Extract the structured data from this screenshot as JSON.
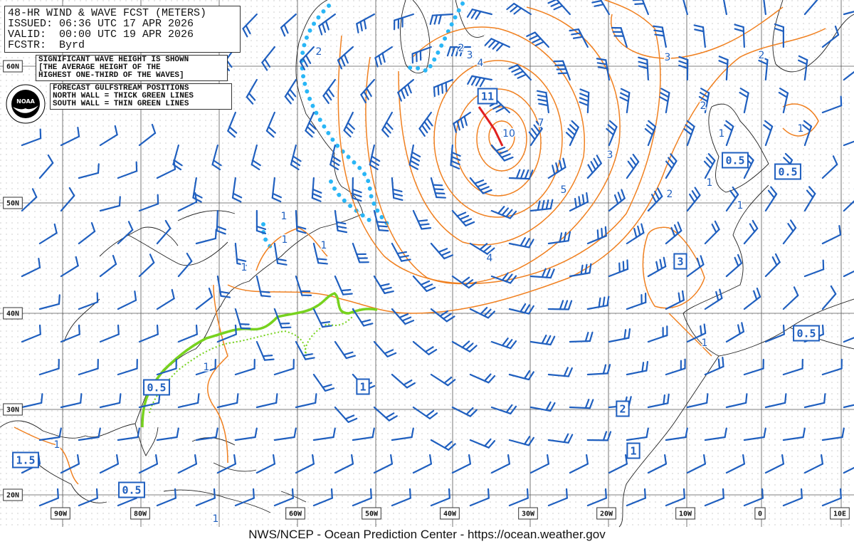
{
  "header": {
    "title": "48-HR WIND & WAVE FCST (METERS)",
    "issued": "ISSUED: 06:36 UTC 17 APR 2026",
    "valid": "VALID:  00:00 UTC 19 APR 2026",
    "forecaster": "FCSTR:  Byrd"
  },
  "wave_note": [
    "SIGNIFICANT WAVE HEIGHT IS SHOWN",
    "[THE AVERAGE HEIGHT OF THE",
    "HIGHEST ONE-THIRD OF THE WAVES]"
  ],
  "gulfstream_note": [
    "FORECAST GULFSTREAM POSITIONS",
    "NORTH WALL = THICK GREEN LINES",
    "SOUTH WALL = THIN GREEN LINES"
  ],
  "logo_text": "NOAA",
  "footer": "NWS/NCEP - Ocean Prediction Center - https://ocean.weather.gov",
  "lat_labels": [
    "60N",
    "50N",
    "40N",
    "30N",
    "20N"
  ],
  "lon_labels": [
    "90W",
    "80W",
    "60W",
    "50W",
    "40W",
    "30W",
    "20W",
    "10W",
    "0",
    "10E"
  ],
  "wave_max_labels": [
    "11",
    "0.5",
    "0.5",
    "3",
    "0.5",
    "0.5",
    "1",
    "2",
    "1",
    "1.5",
    "0.5"
  ],
  "contour_labels": [
    "2",
    "2",
    "3",
    "4",
    "10",
    "7",
    "3",
    "2",
    "2",
    "1",
    "1",
    "3",
    "5",
    "1",
    "2",
    "1",
    "4",
    "1",
    "1",
    "1",
    "1",
    "1",
    "1",
    "1",
    "1"
  ],
  "colors": {
    "wave_contour": "#f08020",
    "wind_barb": "#1f5fbf",
    "gulfstream": "#77d21e",
    "ice_edge": "#29b6f6",
    "max_wind": "#e02020",
    "grid": "#555555"
  }
}
